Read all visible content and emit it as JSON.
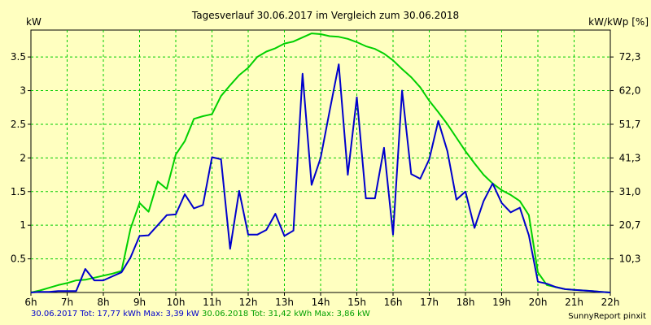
{
  "chart_data": {
    "type": "line",
    "title": "Tagesverlauf 30.06.2017 im Vergleich zum 30.06.2018",
    "ylabel_left": "kW",
    "ylabel_right": "kW/kWp [%]",
    "x_ticks": [
      "6h",
      "7h",
      "8h",
      "9h",
      "10h",
      "11h",
      "12h",
      "13h",
      "14h",
      "15h",
      "16h",
      "17h",
      "18h",
      "19h",
      "20h",
      "21h",
      "22h"
    ],
    "y_left_ticks": [
      "0.5",
      "1",
      "1.5",
      "2",
      "2.5",
      "3",
      "3.5"
    ],
    "y_right_ticks": [
      "10,3",
      "20,7",
      "31,0",
      "41,3",
      "51,7",
      "62,0",
      "72,3"
    ],
    "xlim": [
      6,
      22
    ],
    "ylim": [
      0,
      3.9
    ],
    "grid": true,
    "series": [
      {
        "name": "30.06.2017",
        "color": "#0000cc",
        "x": [
          6.0,
          6.25,
          6.5,
          6.75,
          7.0,
          7.25,
          7.5,
          7.75,
          8.0,
          8.25,
          8.5,
          8.75,
          9.0,
          9.25,
          9.5,
          9.75,
          10.0,
          10.25,
          10.5,
          10.75,
          11.0,
          11.25,
          11.5,
          11.75,
          12.0,
          12.25,
          12.5,
          12.75,
          13.0,
          13.25,
          13.5,
          13.75,
          14.0,
          14.25,
          14.5,
          14.75,
          15.0,
          15.25,
          15.5,
          15.75,
          16.0,
          16.25,
          16.5,
          16.75,
          17.0,
          17.25,
          17.5,
          17.75,
          18.0,
          18.25,
          18.5,
          18.75,
          19.0,
          19.25,
          19.5,
          19.75,
          20.0,
          20.25,
          20.5,
          20.75,
          21.0,
          21.25,
          21.5,
          21.75,
          22.0
        ],
        "y": [
          0.0,
          0.01,
          0.01,
          0.02,
          0.02,
          0.02,
          0.35,
          0.18,
          0.18,
          0.24,
          0.3,
          0.52,
          0.84,
          0.85,
          1.0,
          1.15,
          1.16,
          1.46,
          1.25,
          1.3,
          2.01,
          1.98,
          0.65,
          1.51,
          0.86,
          0.86,
          0.93,
          1.17,
          0.84,
          0.92,
          3.25,
          1.6,
          2.0,
          2.7,
          3.39,
          1.75,
          2.9,
          1.4,
          1.4,
          2.15,
          0.86,
          3.0,
          1.76,
          1.69,
          1.98,
          2.55,
          2.1,
          1.38,
          1.5,
          0.96,
          1.36,
          1.62,
          1.33,
          1.19,
          1.26,
          0.85,
          0.16,
          0.13,
          0.08,
          0.05,
          0.04,
          0.03,
          0.02,
          0.01,
          0.0
        ]
      },
      {
        "name": "30.06.2018",
        "color": "#00d000",
        "x": [
          6.0,
          6.25,
          6.5,
          6.75,
          7.0,
          7.25,
          7.5,
          7.75,
          8.0,
          8.25,
          8.5,
          8.75,
          9.0,
          9.25,
          9.5,
          9.75,
          10.0,
          10.25,
          10.5,
          10.75,
          11.0,
          11.25,
          11.5,
          11.75,
          12.0,
          12.25,
          12.5,
          12.75,
          13.0,
          13.25,
          13.5,
          13.75,
          14.0,
          14.25,
          14.5,
          14.75,
          15.0,
          15.25,
          15.5,
          15.75,
          16.0,
          16.25,
          16.5,
          16.75,
          17.0,
          17.25,
          17.5,
          17.75,
          18.0,
          18.25,
          18.5,
          18.75,
          19.0,
          19.25,
          19.5,
          19.75,
          20.0,
          20.25,
          20.5,
          20.75,
          21.0,
          21.25,
          21.5,
          21.75,
          22.0
        ],
        "y": [
          0.0,
          0.03,
          0.07,
          0.11,
          0.14,
          0.18,
          0.19,
          0.22,
          0.25,
          0.28,
          0.32,
          0.95,
          1.33,
          1.2,
          1.65,
          1.54,
          2.05,
          2.25,
          2.58,
          2.62,
          2.65,
          2.92,
          3.08,
          3.23,
          3.34,
          3.5,
          3.58,
          3.63,
          3.7,
          3.73,
          3.79,
          3.85,
          3.84,
          3.81,
          3.8,
          3.77,
          3.72,
          3.66,
          3.62,
          3.55,
          3.45,
          3.32,
          3.2,
          3.05,
          2.85,
          2.68,
          2.5,
          2.3,
          2.1,
          1.92,
          1.75,
          1.62,
          1.52,
          1.45,
          1.36,
          1.15,
          0.3,
          0.11,
          0.08,
          0.05,
          0.04,
          0.03,
          0.02,
          0.01,
          0.0
        ]
      }
    ],
    "footer": {
      "s1_label": "30.06.2017 Tot: 17,77 kWh Max: 3,39 kW",
      "s2_label": "30.06.2018 Tot: 31,42 kWh Max: 3,86 kW"
    },
    "credit": "SunnyReport pinxit"
  }
}
